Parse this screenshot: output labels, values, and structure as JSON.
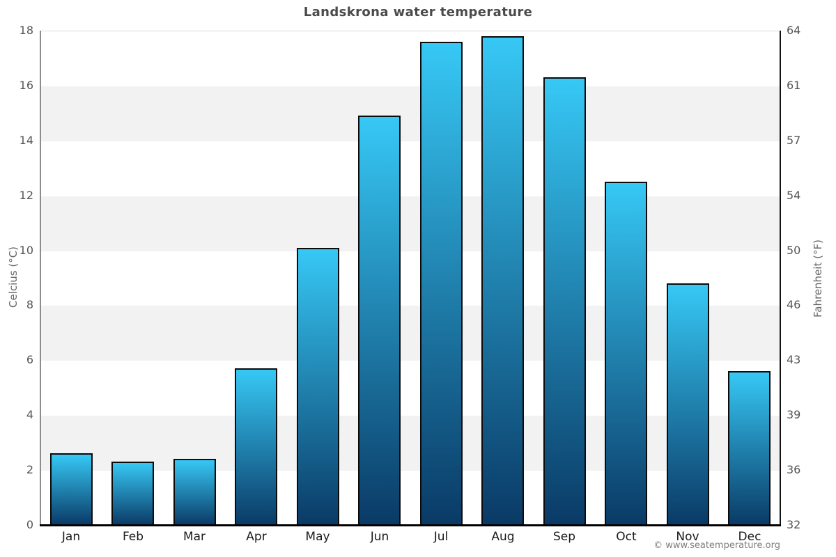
{
  "title": "Landskrona water temperature",
  "axes": {
    "left_label": "Celcius (°C)",
    "right_label": "Fahrenheit (°F)"
  },
  "footer": {
    "copyright": "© www.seatemperature.org"
  },
  "chart_data": {
    "type": "bar",
    "title": "Landskrona water temperature",
    "categories": [
      "Jan",
      "Feb",
      "Mar",
      "Apr",
      "May",
      "Jun",
      "Jul",
      "Aug",
      "Sep",
      "Oct",
      "Nov",
      "Dec"
    ],
    "values": [
      2.6,
      2.3,
      2.4,
      5.7,
      10.1,
      14.9,
      17.6,
      17.8,
      16.3,
      12.5,
      8.8,
      5.6
    ],
    "unit": "°C",
    "xlabel": "",
    "ylabel_left": "Celcius (°C)",
    "ylabel_right": "Fahrenheit (°F)",
    "ylim": [
      0,
      18
    ],
    "yticks_celsius": [
      0,
      2,
      4,
      6,
      8,
      10,
      12,
      14,
      16,
      18
    ],
    "yticks_fahrenheit": [
      32,
      36,
      39,
      43,
      46,
      50,
      54,
      57,
      61,
      64
    ],
    "legend": "none",
    "grid": "alternating-horizontal-bands",
    "colors": {
      "bar_gradient_top": "#37c8f5",
      "bar_gradient_bottom": "#0a3a66",
      "bar_border": "#0b0b0b",
      "band_gray": "#f2f2f2",
      "background": "#ffffff",
      "title_text": "#4a4a4a",
      "tick_text": "#555555",
      "month_text": "#1a1a1a"
    }
  }
}
